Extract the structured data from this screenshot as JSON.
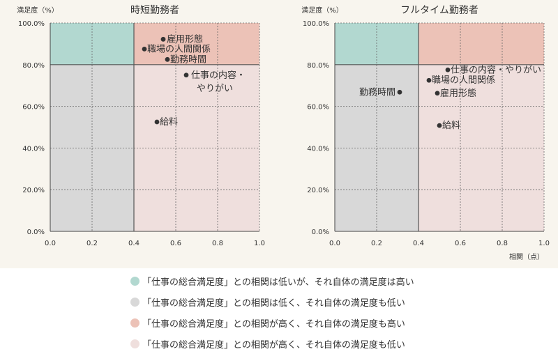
{
  "chart_data": [
    {
      "type": "scatter",
      "title": "時短勤務者",
      "ylabel": "満足度（%）",
      "xlabel": "",
      "xlim": [
        0,
        1
      ],
      "ylim": [
        0,
        100
      ],
      "x_divider": 0.4,
      "y_divider": 80,
      "x_ticks": [
        "0.0",
        "0.2",
        "0.4",
        "0.6",
        "0.8",
        "1.0"
      ],
      "y_ticks": [
        "0.0%",
        "20.0%",
        "40.0%",
        "60.0%",
        "80.0%",
        "100.0%"
      ],
      "grid": true,
      "points": [
        {
          "label": "雇用形態",
          "x": 0.54,
          "y": 92.2
        },
        {
          "label": "職場の人間関係",
          "x": 0.45,
          "y": 87.5
        },
        {
          "label": "勤務時間",
          "x": 0.56,
          "y": 82.5
        },
        {
          "label": "仕事の内容・\nやりがい",
          "x": 0.65,
          "y": 75.0
        },
        {
          "label": "給料",
          "x": 0.51,
          "y": 52.5
        }
      ]
    },
    {
      "type": "scatter",
      "title": "フルタイム勤務者",
      "ylabel": "満足度（%）",
      "xlabel": "相関（点）",
      "xlim": [
        0,
        1
      ],
      "ylim": [
        0,
        100
      ],
      "x_divider": 0.4,
      "y_divider": 80,
      "x_ticks": [
        "0.0",
        "0.2",
        "0.4",
        "0.6",
        "0.8",
        "1.0"
      ],
      "y_ticks": [
        "0.0%",
        "20.0%",
        "40.0%",
        "60.0%",
        "80.0%",
        "100.0%"
      ],
      "grid": true,
      "points": [
        {
          "label": "仕事の内容・やりがい",
          "x": 0.54,
          "y": 77.5
        },
        {
          "label": "職場の人間関係",
          "x": 0.45,
          "y": 72.5
        },
        {
          "label": "雇用形態",
          "x": 0.49,
          "y": 66.3
        },
        {
          "label": "勤務時間",
          "x": 0.31,
          "y": 66.8
        },
        {
          "label": "給料",
          "x": 0.5,
          "y": 50.8
        }
      ]
    }
  ],
  "quadrant_colors": {
    "low_corr_high_sat": "#b2d8d0",
    "low_corr_low_sat": "#d8d8d8",
    "high_corr_high_sat": "#ecc2b7",
    "high_corr_low_sat": "#efdfdd"
  },
  "legend": [
    {
      "color": "#b2d8d0",
      "text": "「仕事の総合満足度」との相関は低いが、それ自体の満足度は高い"
    },
    {
      "color": "#d8d8d8",
      "text": "「仕事の総合満足度」との相関は低く、それ自体の満足度も低い"
    },
    {
      "color": "#ecc2b7",
      "text": "「仕事の総合満足度」との相関が高く、それ自体の満足度も高い"
    },
    {
      "color": "#efdfdd",
      "text": "「仕事の総合満足度」との相関が高く、それ自体の満足度も低い"
    }
  ]
}
